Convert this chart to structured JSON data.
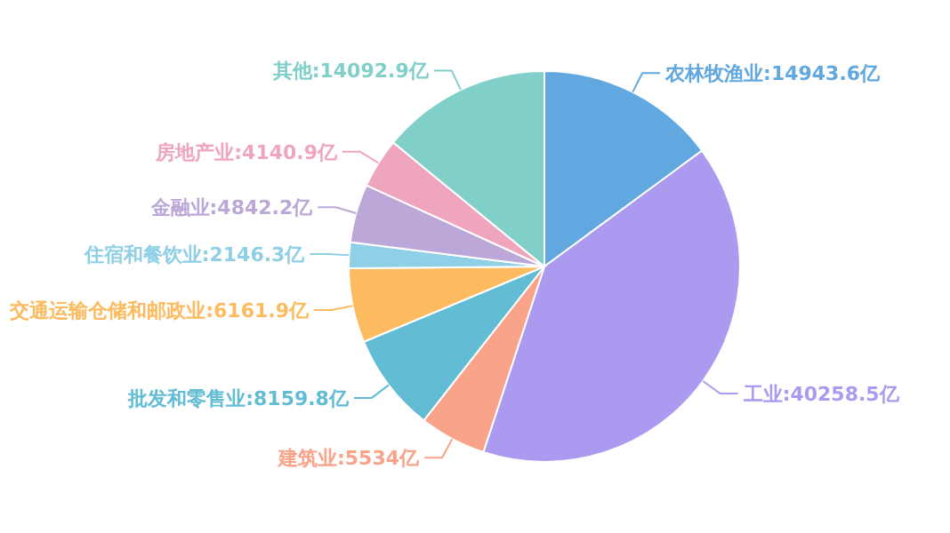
{
  "chart_data": {
    "type": "pie",
    "categories": [
      "农林牧渔业",
      "工业",
      "建筑业",
      "批发和零售业",
      "交通运输仓储和邮政业",
      "住宿和餐饮业",
      "金融业",
      "房地产业",
      "其他"
    ],
    "values": [
      14943.6,
      40258.5,
      5534,
      8159.8,
      6161.9,
      2146.3,
      4842.2,
      4140.9,
      14092.9
    ],
    "value_labels": [
      "14943.6亿",
      "40258.5亿",
      "5534亿",
      "8159.8亿",
      "6161.9亿",
      "2146.3亿",
      "4842.2亿",
      "4140.9亿",
      "14092.9亿"
    ],
    "colors": [
      "#62a8e0",
      "#ab9af0",
      "#f9a38a",
      "#62bdd4",
      "#fdbb5f",
      "#8fd0e6",
      "#bba8d8",
      "#f0a5bf",
      "#80cfc9"
    ]
  }
}
